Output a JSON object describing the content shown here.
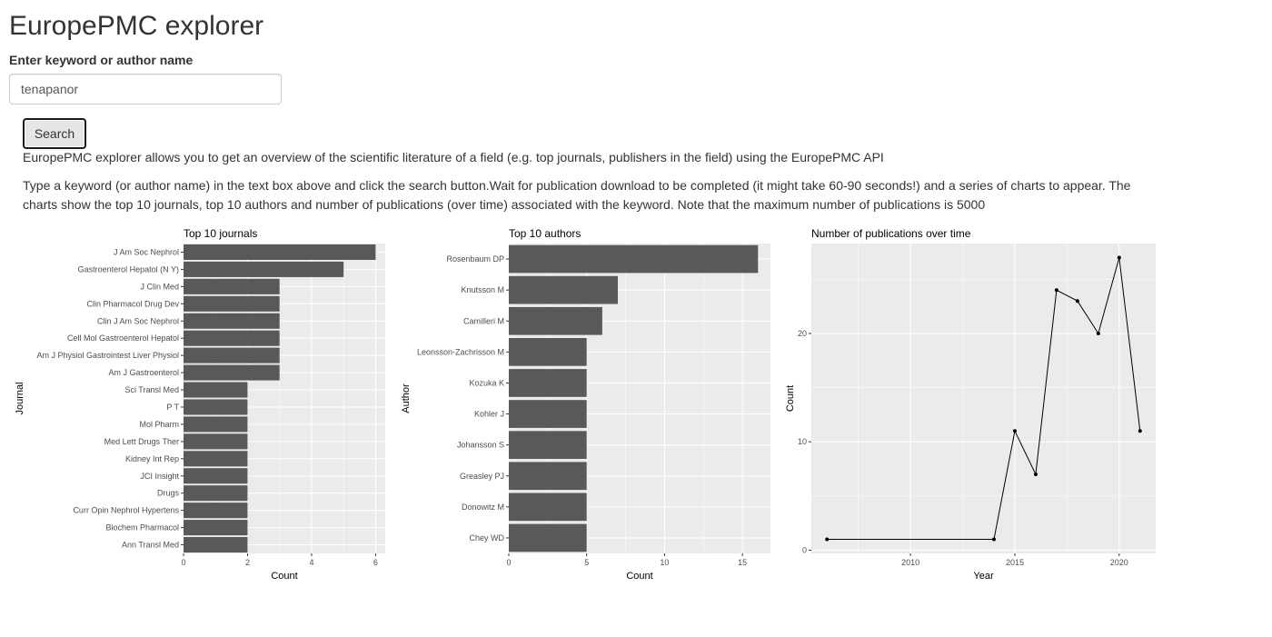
{
  "app": {
    "title": "EuropePMC explorer"
  },
  "search": {
    "label": "Enter keyword or author name",
    "value": "tenapanor",
    "button_label": "Search"
  },
  "description": {
    "intro": "EuropePMC explorer allows you to get an overview of the scientific literature of a field (e.g. top journals, publishers in the field) using the EuropePMC API",
    "instructions": "Type a keyword (or author name) in the text box above and click the search button.Wait for publication download to be completed (it might take 60-90 seconds!) and a series of charts to appear. The charts show the top 10 journals, top 10 authors and number of publications (over time) associated with the keyword. Note that the maximum number of publications is 5000"
  },
  "colors": {
    "panel_background": "#ebebeb",
    "grid_line": "#ffffff",
    "bar_fill": "#595959",
    "line": "#000000",
    "axis_text": "#4d4d4d",
    "text": "#333333"
  },
  "chart_data": [
    {
      "type": "bar",
      "orientation": "horizontal",
      "title": "Top 10 journals",
      "xlabel": "Count",
      "ylabel": "Journal",
      "categories": [
        "J Am Soc Nephrol",
        "Gastroenterol Hepatol (N Y)",
        "J Clin Med",
        "Clin Pharmacol Drug Dev",
        "Clin J Am Soc Nephrol",
        "Cell Mol Gastroenterol Hepatol",
        "Am J Physiol Gastrointest Liver Physiol",
        "Am J Gastroenterol",
        "Sci Transl Med",
        "P T",
        "Mol Pharm",
        "Med Lett Drugs Ther",
        "Kidney Int Rep",
        "JCI Insight",
        "Drugs",
        "Curr Opin Nephrol Hypertens",
        "Biochem Pharmacol",
        "Ann Transl Med"
      ],
      "values": [
        6,
        5,
        3,
        3,
        3,
        3,
        3,
        3,
        2,
        2,
        2,
        2,
        2,
        2,
        2,
        2,
        2,
        2
      ],
      "xlim": [
        0,
        6.3
      ],
      "xticks": [
        0,
        2,
        4,
        6
      ],
      "grid": true
    },
    {
      "type": "bar",
      "orientation": "horizontal",
      "title": "Top 10 authors",
      "xlabel": "Count",
      "ylabel": "Author",
      "categories": [
        "Rosenbaum DP",
        "Knutsson M",
        "Camilleri M",
        "Leonsson-Zachrisson M",
        "Kozuka K",
        "Kohler J",
        "Johansson S",
        "Greasley PJ",
        "Donowitz M",
        "Chey WD"
      ],
      "values": [
        16,
        7,
        6,
        5,
        5,
        5,
        5,
        5,
        5,
        5
      ],
      "xlim": [
        0,
        16.8
      ],
      "xticks": [
        0,
        5,
        10,
        15
      ],
      "grid": true
    },
    {
      "type": "line",
      "title": "Number of publications over time",
      "xlabel": "Year",
      "ylabel": "Count",
      "x": [
        2006,
        2014,
        2015,
        2016,
        2017,
        2018,
        2019,
        2020,
        2021
      ],
      "y": [
        1,
        1,
        11,
        7,
        24,
        23,
        20,
        27,
        11
      ],
      "xlim": [
        2005.25,
        2021.75
      ],
      "ylim": [
        -0.3,
        28.3
      ],
      "xticks": [
        2010,
        2015,
        2020
      ],
      "yticks": [
        0,
        10,
        20
      ],
      "grid": true
    }
  ]
}
